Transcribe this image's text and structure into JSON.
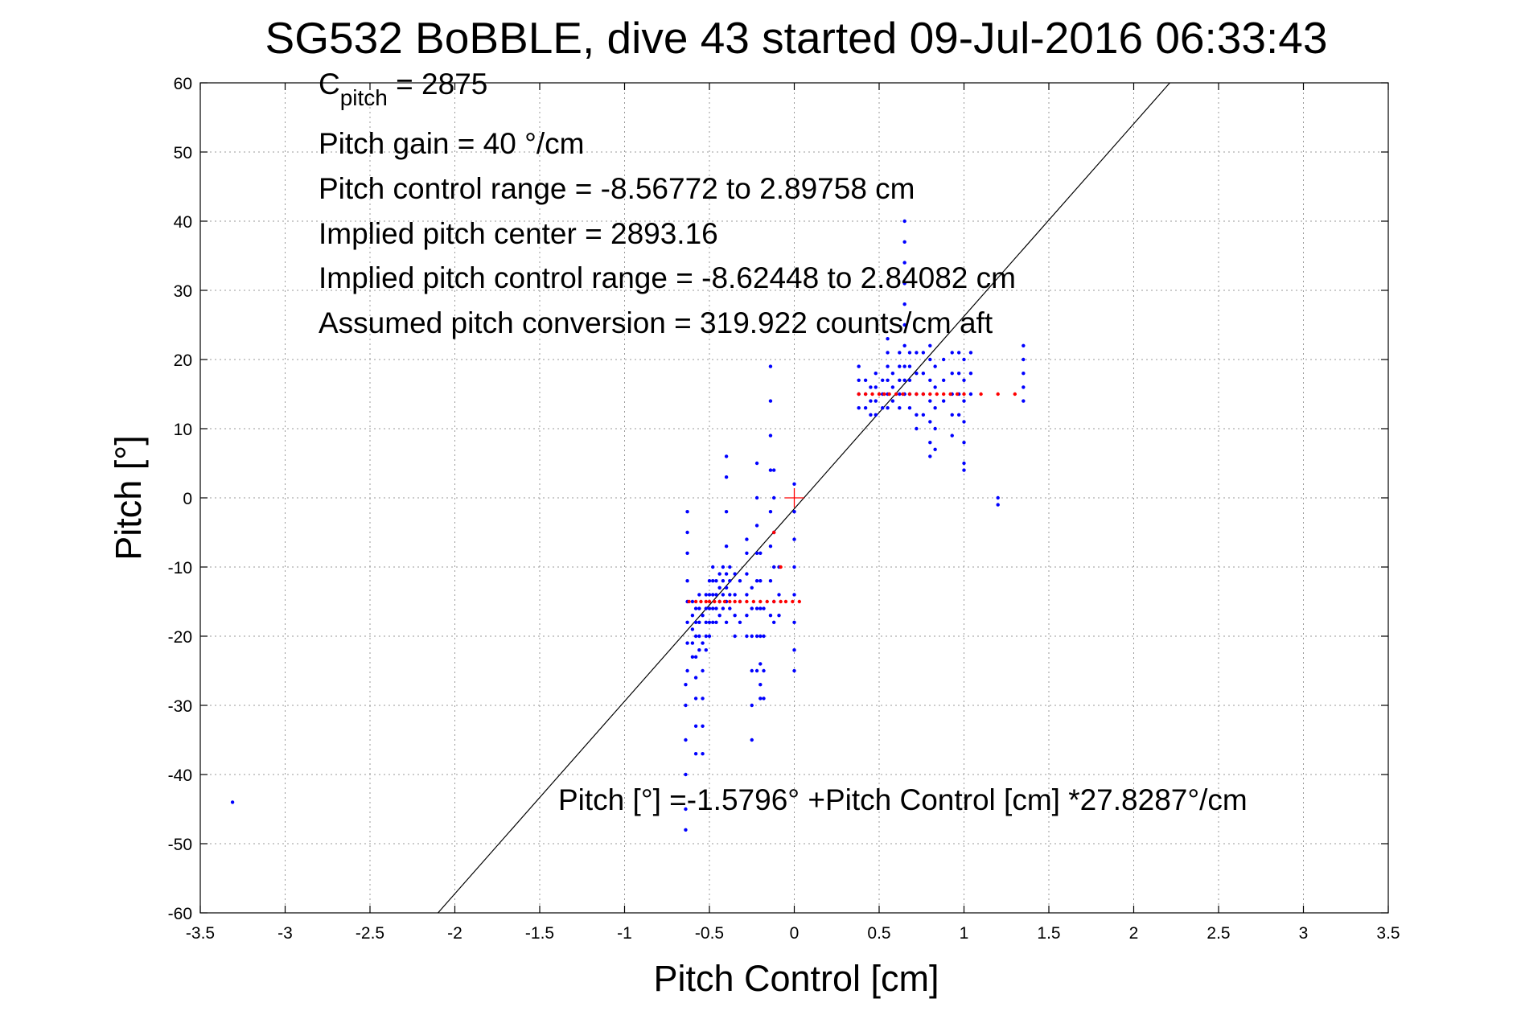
{
  "chart_data": {
    "type": "scatter",
    "title": "SG532 BoBBLE, dive 43 started 09-Jul-2016 06:33:43",
    "xlabel": "Pitch Control [cm]",
    "ylabel": "Pitch [°]",
    "xlim": [
      -3.5,
      3.5
    ],
    "ylim": [
      -60,
      60
    ],
    "xticks": [
      -3.5,
      -3,
      -2.5,
      -2,
      -1.5,
      -1,
      -0.5,
      0,
      0.5,
      1,
      1.5,
      2,
      2.5,
      3,
      3.5
    ],
    "yticks": [
      -60,
      -50,
      -40,
      -30,
      -20,
      -10,
      0,
      10,
      20,
      30,
      40,
      50,
      60
    ],
    "xtick_labels": [
      "-3.5",
      "-3",
      "-2.5",
      "-2",
      "-1.5",
      "-1",
      "-0.5",
      "0",
      "0.5",
      "1",
      "1.5",
      "2",
      "2.5",
      "3",
      "3.5"
    ],
    "ytick_labels": [
      "-60",
      "-50",
      "-40",
      "-30",
      "-20",
      "-10",
      "0",
      "10",
      "20",
      "30",
      "40",
      "50",
      "60"
    ],
    "grid": true,
    "colors": {
      "observed": "#0000ff",
      "binned": "#ff0000",
      "fit": "#000000"
    },
    "annotations": {
      "c_pitch_main": "C",
      "c_pitch_sub": "pitch",
      "c_pitch_value": " = 2875",
      "lines": [
        "Pitch gain = 40 °/cm",
        "Pitch control range = -8.56772 to 2.89758 cm",
        "Implied pitch center = 2893.16",
        "Implied pitch control range = -8.62448 to 2.84082 cm",
        "Assumed pitch conversion = 319.922 counts/cm aft"
      ],
      "fit_equation": "Pitch [°] =-1.5796° +Pitch Control [cm] *27.8287°/cm"
    },
    "fit_line": {
      "intercept": -1.5796,
      "slope": 27.8287
    },
    "center_marker": {
      "x": 0,
      "y": 0
    },
    "observed_columns": [
      {
        "x": -3.31,
        "y": [
          -44
        ]
      },
      {
        "x": -0.64,
        "y": [
          -48,
          -45,
          -40,
          -35,
          -30,
          -27
        ]
      },
      {
        "x": -0.63,
        "y": [
          -25,
          -21,
          -18,
          -15,
          -12,
          -8,
          -5,
          -2
        ]
      },
      {
        "x": -0.6,
        "y": [
          -23,
          -21,
          -19,
          -17,
          -15
        ]
      },
      {
        "x": -0.58,
        "y": [
          -37,
          -33,
          -29,
          -26,
          -23,
          -20,
          -18,
          -16
        ]
      },
      {
        "x": -0.56,
        "y": [
          -22,
          -20,
          -18,
          -16,
          -14
        ]
      },
      {
        "x": -0.54,
        "y": [
          -37,
          -33,
          -29,
          -25,
          -21,
          -17
        ]
      },
      {
        "x": -0.52,
        "y": [
          -22,
          -20,
          -18,
          -16,
          -14
        ]
      },
      {
        "x": -0.5,
        "y": [
          -20,
          -18,
          -16,
          -14,
          -12
        ]
      },
      {
        "x": -0.48,
        "y": [
          -18,
          -16,
          -14,
          -12,
          -10
        ]
      },
      {
        "x": -0.46,
        "y": [
          -18,
          -16,
          -14,
          -12
        ]
      },
      {
        "x": -0.44,
        "y": [
          -17,
          -15,
          -13,
          -11
        ]
      },
      {
        "x": -0.42,
        "y": [
          -16,
          -14,
          -12,
          -10
        ]
      },
      {
        "x": -0.4,
        "y": [
          -18,
          -15,
          -13,
          -11,
          -7,
          -2,
          3,
          6
        ]
      },
      {
        "x": -0.38,
        "y": [
          -16,
          -14,
          -12,
          -10
        ]
      },
      {
        "x": -0.35,
        "y": [
          -20,
          -17,
          -14,
          -11
        ]
      },
      {
        "x": -0.32,
        "y": [
          -18,
          -15,
          -12
        ]
      },
      {
        "x": -0.28,
        "y": [
          -20,
          -17,
          -14,
          -11,
          -8,
          -6
        ]
      },
      {
        "x": -0.25,
        "y": [
          -35,
          -30,
          -25,
          -20,
          -16,
          -13
        ]
      },
      {
        "x": -0.22,
        "y": [
          -25,
          -20,
          -16,
          -12,
          -8,
          -4,
          0,
          5
        ]
      },
      {
        "x": -0.2,
        "y": [
          -29,
          -27,
          -24,
          -20,
          -16,
          -12,
          -8
        ]
      },
      {
        "x": -0.18,
        "y": [
          -29,
          -25,
          -20,
          -16
        ]
      },
      {
        "x": -0.14,
        "y": [
          -17,
          -12,
          -7,
          -2,
          4,
          9,
          14,
          19
        ]
      },
      {
        "x": -0.12,
        "y": [
          -18,
          -15,
          -10,
          -5,
          0,
          4
        ]
      },
      {
        "x": -0.09,
        "y": [
          -17,
          -14,
          -10
        ]
      },
      {
        "x": 0.0,
        "y": [
          -25,
          -22,
          -18,
          -14,
          -10,
          -6,
          -2,
          2
        ]
      },
      {
        "x": 0.38,
        "y": [
          19,
          17,
          15,
          13
        ]
      },
      {
        "x": 0.42,
        "y": [
          17,
          15,
          13
        ]
      },
      {
        "x": 0.45,
        "y": [
          16,
          14,
          12
        ]
      },
      {
        "x": 0.48,
        "y": [
          18,
          16,
          14,
          12
        ]
      },
      {
        "x": 0.52,
        "y": [
          17,
          15,
          13
        ]
      },
      {
        "x": 0.55,
        "y": [
          23,
          21,
          19,
          17,
          15,
          13
        ]
      },
      {
        "x": 0.58,
        "y": [
          18,
          16,
          14
        ]
      },
      {
        "x": 0.62,
        "y": [
          21,
          19,
          17,
          15,
          13
        ]
      },
      {
        "x": 0.65,
        "y": [
          40,
          37,
          34,
          31,
          28,
          25,
          22,
          19,
          17,
          15
        ]
      },
      {
        "x": 0.68,
        "y": [
          21,
          19,
          17,
          15,
          13
        ]
      },
      {
        "x": 0.72,
        "y": [
          21,
          18,
          15,
          12,
          10
        ]
      },
      {
        "x": 0.76,
        "y": [
          21,
          18,
          15,
          12
        ]
      },
      {
        "x": 0.8,
        "y": [
          22,
          20,
          17,
          14,
          11,
          8,
          6
        ]
      },
      {
        "x": 0.83,
        "y": [
          19,
          16,
          13,
          10,
          7
        ]
      },
      {
        "x": 0.88,
        "y": [
          20,
          17,
          14
        ]
      },
      {
        "x": 0.93,
        "y": [
          21,
          18,
          15,
          12,
          9
        ]
      },
      {
        "x": 0.97,
        "y": [
          21,
          18,
          15,
          12
        ]
      },
      {
        "x": 1.0,
        "y": [
          20,
          17,
          14,
          11,
          8,
          5,
          4
        ]
      },
      {
        "x": 1.04,
        "y": [
          21,
          18,
          15
        ]
      },
      {
        "x": 1.2,
        "y": [
          0,
          -1
        ]
      },
      {
        "x": 1.35,
        "y": [
          22,
          20,
          18,
          16,
          14
        ]
      }
    ],
    "binned_series": [
      {
        "name": "",
        "x": [
          -0.62,
          -0.58,
          -0.55,
          -0.52,
          -0.5,
          -0.47,
          -0.44,
          -0.41,
          -0.38,
          -0.35,
          -0.32,
          -0.28,
          -0.24,
          -0.2,
          -0.16,
          -0.12,
          -0.08,
          -0.05,
          -0.01,
          0.03
        ],
        "y": [
          -15,
          -15,
          -15,
          -15,
          -15,
          -15,
          -15,
          -15,
          -15,
          -15,
          -15,
          -15,
          -15,
          -15,
          -15,
          -15,
          -15,
          -15,
          -15,
          -15
        ]
      },
      {
        "name": "",
        "x": [
          0.38,
          0.42,
          0.46,
          0.5,
          0.53,
          0.56,
          0.6,
          0.64,
          0.68,
          0.72,
          0.76,
          0.8,
          0.84,
          0.88,
          0.92,
          0.96,
          1.0,
          1.1,
          1.2,
          1.3
        ],
        "y": [
          15,
          15,
          15,
          15,
          15,
          15,
          15,
          15,
          15,
          15,
          15,
          15,
          15,
          15,
          15,
          15,
          15,
          15,
          15,
          15
        ]
      },
      {
        "name": "",
        "x": [
          -0.12,
          -0.08
        ],
        "y": [
          -5,
          -10
        ]
      }
    ]
  }
}
